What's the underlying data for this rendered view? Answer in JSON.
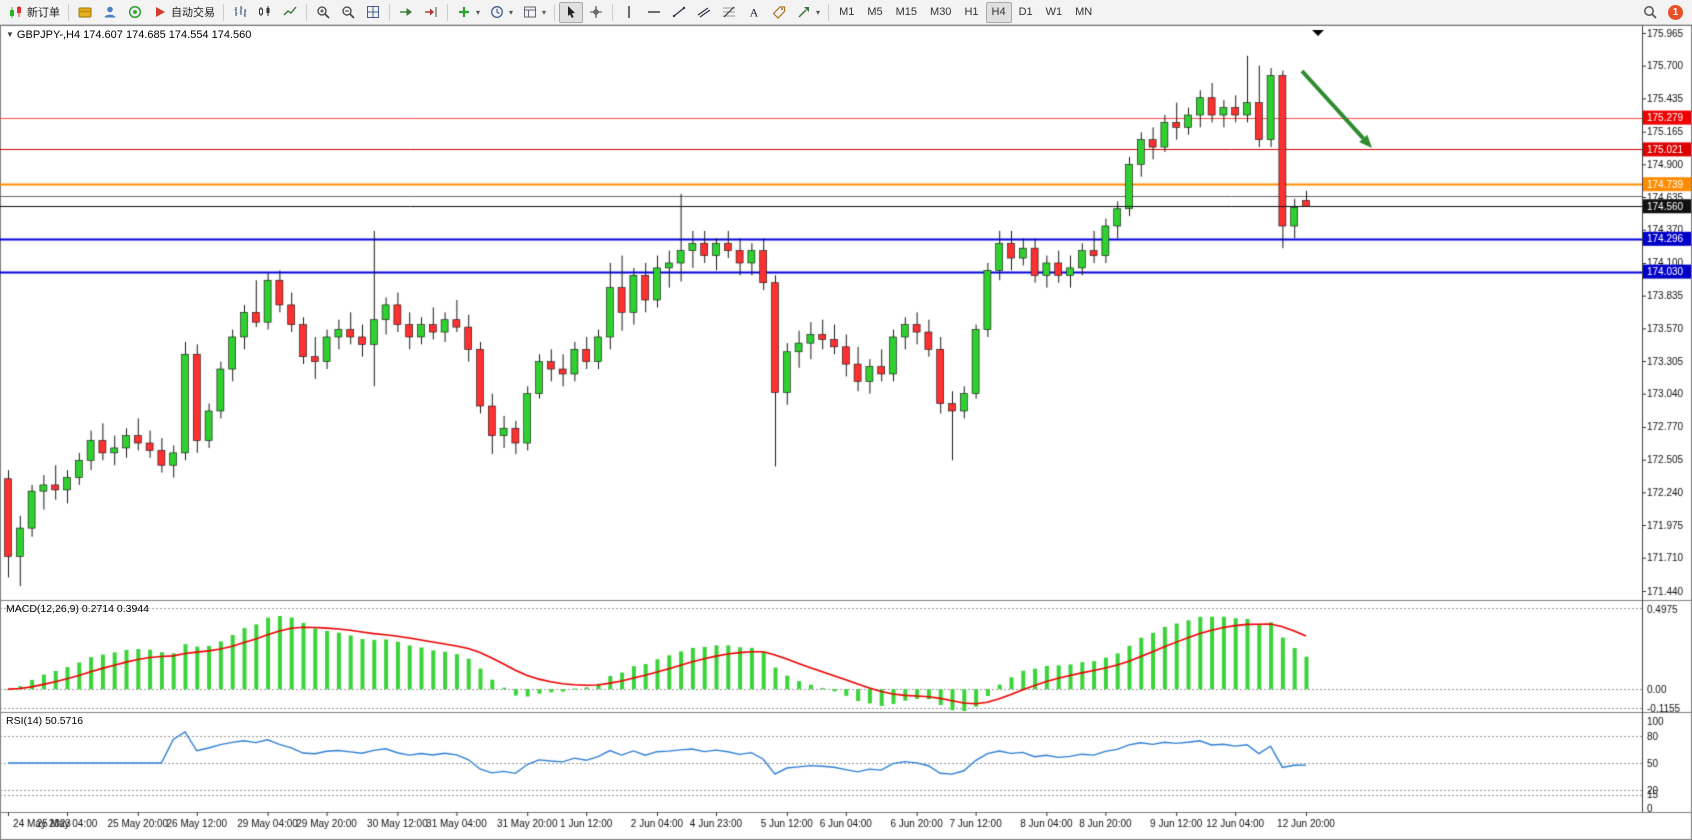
{
  "toolbar": {
    "items": [
      {
        "type": "button",
        "name": "new-order-button",
        "icon": "new-order-icon",
        "label": "新订单"
      },
      {
        "type": "sep"
      },
      {
        "type": "button",
        "name": "deposit-button",
        "icon": "wallet-icon"
      },
      {
        "type": "button",
        "name": "profile-button",
        "icon": "profile-icon"
      },
      {
        "type": "button",
        "name": "support-button",
        "icon": "headset-icon"
      },
      {
        "type": "button",
        "name": "auto-trading-button",
        "icon": "auto-trading-icon",
        "label": "自动交易"
      },
      {
        "type": "sep"
      },
      {
        "type": "button",
        "name": "bar-chart-button",
        "icon": "bar-chart-icon"
      },
      {
        "type": "button",
        "name": "candlestick-button",
        "icon": "candlestick-icon"
      },
      {
        "type": "button",
        "name": "line-chart-button",
        "icon": "line-chart-icon"
      },
      {
        "type": "sep"
      },
      {
        "type": "button",
        "name": "zoom-in-button",
        "icon": "zoom-in-icon"
      },
      {
        "type": "button",
        "name": "zoom-out-button",
        "icon": "zoom-out-icon"
      },
      {
        "type": "button",
        "name": "tile-windows-button",
        "icon": "tile-windows-icon"
      },
      {
        "type": "sep"
      },
      {
        "type": "button",
        "name": "auto-scroll-button",
        "icon": "auto-scroll-icon"
      },
      {
        "type": "button",
        "name": "chart-shift-button",
        "icon": "chart-shift-icon"
      },
      {
        "type": "sep"
      },
      {
        "type": "button",
        "name": "indicators-button",
        "icon": "indicators-icon",
        "dropdown": true
      },
      {
        "type": "button",
        "name": "periods-button",
        "icon": "clock-icon",
        "dropdown": true
      },
      {
        "type": "button",
        "name": "templates-button",
        "icon": "template-icon",
        "dropdown": true
      },
      {
        "type": "sep"
      },
      {
        "type": "button",
        "name": "cursor-button",
        "icon": "cursor-icon",
        "active": true
      },
      {
        "type": "button",
        "name": "crosshair-button",
        "icon": "crosshair-icon"
      },
      {
        "type": "sep"
      },
      {
        "type": "button",
        "name": "vertical-line-button",
        "icon": "vertical-line-icon"
      },
      {
        "type": "button",
        "name": "horizontal-line-button",
        "icon": "horizontal-line-icon"
      },
      {
        "type": "button",
        "name": "trendline-button",
        "icon": "trendline-icon"
      },
      {
        "type": "button",
        "name": "channel-button",
        "icon": "channel-icon"
      },
      {
        "type": "button",
        "name": "fibonacci-button",
        "icon": "fibonacci-icon"
      },
      {
        "type": "button",
        "name": "text-button",
        "icon": "text-icon"
      },
      {
        "type": "button",
        "name": "label-button",
        "icon": "label-icon"
      },
      {
        "type": "button",
        "name": "shapes-button",
        "icon": "shapes-icon",
        "dropdown": true
      },
      {
        "type": "sep"
      },
      {
        "type": "tf",
        "name": "timeframe-m1-button",
        "label": "M1"
      },
      {
        "type": "tf",
        "name": "timeframe-m5-button",
        "label": "M5"
      },
      {
        "type": "tf",
        "name": "timeframe-m15-button",
        "label": "M15"
      },
      {
        "type": "tf",
        "name": "timeframe-m30-button",
        "label": "M30"
      },
      {
        "type": "tf",
        "name": "timeframe-h1-button",
        "label": "H1"
      },
      {
        "type": "tf",
        "name": "timeframe-h4-button",
        "label": "H4",
        "active": true
      },
      {
        "type": "tf",
        "name": "timeframe-d1-button",
        "label": "D1"
      },
      {
        "type": "tf",
        "name": "timeframe-w1-button",
        "label": "W1"
      },
      {
        "type": "tf",
        "name": "timeframe-mn-button",
        "label": "MN"
      },
      {
        "type": "spacer"
      },
      {
        "type": "button",
        "name": "search-button",
        "icon": "search-icon"
      },
      {
        "type": "badge",
        "name": "notification-badge",
        "label": "1"
      }
    ]
  },
  "chart": {
    "title": "GBPJPY-,H4 174.607 174.685 174.554 174.560",
    "symbol": "GBPJPY-",
    "period": "H4",
    "ohlc": {
      "open": "174.607",
      "high": "174.685",
      "low": "174.554",
      "close": "174.560"
    }
  },
  "indicators": {
    "macd_label": "MACD(12,26,9) 0.2714 0.3944",
    "rsi_label": "RSI(14) 50.5716"
  },
  "chart_data": {
    "type": "candlestick",
    "symbol": "GBPJPY",
    "timeframe": "H4",
    "up_color": "#2fd02f",
    "down_color": "#ff3030",
    "wick_color": "#1a1a1a",
    "price_axis": {
      "min": 171.44,
      "max": 175.965,
      "ticks": [
        "175.965",
        "175.700",
        "175.435",
        "175.165",
        "174.900",
        "174.635",
        "174.370",
        "174.100",
        "173.835",
        "173.570",
        "173.305",
        "173.040",
        "172.770",
        "172.505",
        "172.240",
        "171.975",
        "171.710",
        "171.440"
      ]
    },
    "hlines": [
      {
        "price": 175.279,
        "color": "#ff4d4d",
        "width": 1,
        "badge": "175.279",
        "badge_color": "#f00000"
      },
      {
        "price": 175.021,
        "color": "#dd0000",
        "width": 1,
        "badge": "175.021",
        "badge_color": "#dd0000"
      },
      {
        "price": 174.739,
        "color": "#ff8c00",
        "width": 2,
        "badge": "174.739",
        "badge_color": "#ff8c00"
      },
      {
        "price": 174.64,
        "color": "#666666",
        "width": 1
      },
      {
        "price": 174.296,
        "color": "#0000e0",
        "width": 2,
        "badge": "174.296",
        "badge_color": "#0000c8"
      },
      {
        "price": 174.03,
        "color": "#0000e0",
        "width": 2,
        "badge": "174.030",
        "badge_color": "#0000c8"
      }
    ],
    "bid_line": {
      "price": 174.56,
      "color": "#101010",
      "width": 1,
      "badge": "174.560",
      "badge_color": "#101010"
    },
    "arrow": {
      "color": "#2e8b2e",
      "from": [
        1302,
        46
      ],
      "to": [
        1372,
        123
      ]
    },
    "macd": {
      "params": [
        12,
        26,
        9
      ],
      "value": 0.2714,
      "signal_value": 0.3944,
      "axis_labels": [
        "0.4975",
        "0.00",
        "-0.1155"
      ],
      "axis_values": [
        0.4975,
        0.0,
        -0.1155
      ],
      "hist_color": "#3ad43a",
      "signal_color": "#ee0000"
    },
    "rsi": {
      "period": 14,
      "value": 50.5716,
      "levels": [
        80,
        50,
        20,
        15
      ],
      "axis_labels": [
        "100",
        "80",
        "50",
        "20",
        "15",
        "0"
      ],
      "axis_values": [
        100,
        80,
        50,
        20,
        15,
        0
      ],
      "color": "#2f7fd6"
    },
    "time_labels": [
      {
        "i": 0,
        "t": "24 May 2023"
      },
      {
        "i": 5,
        "t": "25 May 04:00"
      },
      {
        "i": 11,
        "t": "25 May 20:00"
      },
      {
        "i": 16,
        "t": "26 May 12:00"
      },
      {
        "i": 22,
        "t": "29 May 04:00"
      },
      {
        "i": 27,
        "t": "29 May 20:00"
      },
      {
        "i": 33,
        "t": "30 May 12:00"
      },
      {
        "i": 38,
        "t": "31 May 04:00"
      },
      {
        "i": 44,
        "t": "31 May 20:00"
      },
      {
        "i": 49,
        "t": "1 Jun 12:00"
      },
      {
        "i": 55,
        "t": "2 Jun 04:00"
      },
      {
        "i": 60,
        "t": "4 Jun 23:00"
      },
      {
        "i": 66,
        "t": "5 Jun 12:00"
      },
      {
        "i": 71,
        "t": "6 Jun 04:00"
      },
      {
        "i": 77,
        "t": "6 Jun 20:00"
      },
      {
        "i": 82,
        "t": "7 Jun 12:00"
      },
      {
        "i": 88,
        "t": "8 Jun 04:00"
      },
      {
        "i": 93,
        "t": "8 Jun 20:00"
      },
      {
        "i": 99,
        "t": "9 Jun 12:00"
      },
      {
        "i": 104,
        "t": "12 Jun 04:00"
      },
      {
        "i": 110,
        "t": "12 Jun 20:00"
      }
    ],
    "candles": [
      [
        172.35,
        172.42,
        171.55,
        171.72
      ],
      [
        171.72,
        172.05,
        171.48,
        171.95
      ],
      [
        171.95,
        172.3,
        171.88,
        172.25
      ],
      [
        172.25,
        172.38,
        172.1,
        172.3
      ],
      [
        172.3,
        172.46,
        172.18,
        172.26
      ],
      [
        172.26,
        172.42,
        172.15,
        172.36
      ],
      [
        172.36,
        172.56,
        172.3,
        172.5
      ],
      [
        172.5,
        172.74,
        172.42,
        172.66
      ],
      [
        172.66,
        172.8,
        172.5,
        172.56
      ],
      [
        172.56,
        172.7,
        172.46,
        172.6
      ],
      [
        172.6,
        172.76,
        172.52,
        172.7
      ],
      [
        172.7,
        172.84,
        172.58,
        172.64
      ],
      [
        172.64,
        172.74,
        172.52,
        172.58
      ],
      [
        172.58,
        172.68,
        172.4,
        172.46
      ],
      [
        172.46,
        172.62,
        172.36,
        172.56
      ],
      [
        172.56,
        173.46,
        172.5,
        173.36
      ],
      [
        173.36,
        173.44,
        172.56,
        172.66
      ],
      [
        172.66,
        172.96,
        172.6,
        172.9
      ],
      [
        172.9,
        173.3,
        172.84,
        173.24
      ],
      [
        173.24,
        173.56,
        173.14,
        173.5
      ],
      [
        173.5,
        173.76,
        173.4,
        173.7
      ],
      [
        173.7,
        173.96,
        173.58,
        173.62
      ],
      [
        173.62,
        174.02,
        173.56,
        173.96
      ],
      [
        173.96,
        174.04,
        173.7,
        173.76
      ],
      [
        173.76,
        173.86,
        173.54,
        173.6
      ],
      [
        173.6,
        173.66,
        173.28,
        173.34
      ],
      [
        173.34,
        173.5,
        173.16,
        173.3
      ],
      [
        173.3,
        173.56,
        173.24,
        173.5
      ],
      [
        173.5,
        173.64,
        173.4,
        173.56
      ],
      [
        173.56,
        173.7,
        173.44,
        173.5
      ],
      [
        173.5,
        173.6,
        173.34,
        173.44
      ],
      [
        173.44,
        174.36,
        173.1,
        173.64
      ],
      [
        173.64,
        173.82,
        173.52,
        173.76
      ],
      [
        173.76,
        173.86,
        173.54,
        173.6
      ],
      [
        173.6,
        173.7,
        173.4,
        173.5
      ],
      [
        173.5,
        173.66,
        173.44,
        173.6
      ],
      [
        173.6,
        173.74,
        173.48,
        173.54
      ],
      [
        173.54,
        173.7,
        173.46,
        173.64
      ],
      [
        173.64,
        173.8,
        173.54,
        173.58
      ],
      [
        173.58,
        173.68,
        173.3,
        173.4
      ],
      [
        173.4,
        173.46,
        172.88,
        172.94
      ],
      [
        172.94,
        173.04,
        172.55,
        172.7
      ],
      [
        172.7,
        172.86,
        172.6,
        172.76
      ],
      [
        172.76,
        172.82,
        172.55,
        172.64
      ],
      [
        172.64,
        173.1,
        172.58,
        173.04
      ],
      [
        173.04,
        173.36,
        173.0,
        173.3
      ],
      [
        173.3,
        173.4,
        173.14,
        173.24
      ],
      [
        173.24,
        173.36,
        173.1,
        173.2
      ],
      [
        173.2,
        173.46,
        173.14,
        173.4
      ],
      [
        173.4,
        173.5,
        173.24,
        173.3
      ],
      [
        173.3,
        173.56,
        173.24,
        173.5
      ],
      [
        173.5,
        174.1,
        173.4,
        173.9
      ],
      [
        173.9,
        174.16,
        173.55,
        173.7
      ],
      [
        173.7,
        174.06,
        173.6,
        174.0
      ],
      [
        174.0,
        174.1,
        173.7,
        173.8
      ],
      [
        173.8,
        174.16,
        173.74,
        174.06
      ],
      [
        174.06,
        174.2,
        173.9,
        174.1
      ],
      [
        174.1,
        174.66,
        173.95,
        174.2
      ],
      [
        174.2,
        174.36,
        174.06,
        174.26
      ],
      [
        174.26,
        174.36,
        174.1,
        174.16
      ],
      [
        174.16,
        174.3,
        174.04,
        174.26
      ],
      [
        174.26,
        174.36,
        174.14,
        174.2
      ],
      [
        174.2,
        174.3,
        174.0,
        174.1
      ],
      [
        174.1,
        174.26,
        174.0,
        174.2
      ],
      [
        174.2,
        174.3,
        173.88,
        173.94
      ],
      [
        173.94,
        174.0,
        172.45,
        173.05
      ],
      [
        173.05,
        173.45,
        172.95,
        173.38
      ],
      [
        173.38,
        173.55,
        173.25,
        173.45
      ],
      [
        173.45,
        173.62,
        173.32,
        173.52
      ],
      [
        173.52,
        173.64,
        173.4,
        173.48
      ],
      [
        173.48,
        173.6,
        173.36,
        173.42
      ],
      [
        173.42,
        173.52,
        173.18,
        173.28
      ],
      [
        173.28,
        173.42,
        173.06,
        173.14
      ],
      [
        173.14,
        173.32,
        173.04,
        173.26
      ],
      [
        173.26,
        173.4,
        173.14,
        173.2
      ],
      [
        173.2,
        173.56,
        173.14,
        173.5
      ],
      [
        173.5,
        173.66,
        173.4,
        173.6
      ],
      [
        173.6,
        173.7,
        173.44,
        173.54
      ],
      [
        173.54,
        173.64,
        173.34,
        173.4
      ],
      [
        173.4,
        173.5,
        172.88,
        172.96
      ],
      [
        172.96,
        173.06,
        172.5,
        172.9
      ],
      [
        172.9,
        173.1,
        172.84,
        173.04
      ],
      [
        173.04,
        173.6,
        173.0,
        173.56
      ],
      [
        173.56,
        174.1,
        173.5,
        174.04
      ],
      [
        174.04,
        174.36,
        173.96,
        174.26
      ],
      [
        174.26,
        174.36,
        174.04,
        174.14
      ],
      [
        174.14,
        174.3,
        174.08,
        174.22
      ],
      [
        174.22,
        174.3,
        173.94,
        174.0
      ],
      [
        174.0,
        174.16,
        173.9,
        174.1
      ],
      [
        174.1,
        174.2,
        173.94,
        174.0
      ],
      [
        174.0,
        174.16,
        173.9,
        174.06
      ],
      [
        174.06,
        174.26,
        174.0,
        174.2
      ],
      [
        174.2,
        174.36,
        174.1,
        174.16
      ],
      [
        174.16,
        174.46,
        174.1,
        174.4
      ],
      [
        174.4,
        174.6,
        174.3,
        174.54
      ],
      [
        174.54,
        174.96,
        174.48,
        174.9
      ],
      [
        174.9,
        175.16,
        174.8,
        175.1
      ],
      [
        175.1,
        175.2,
        174.94,
        175.04
      ],
      [
        175.04,
        175.3,
        175.0,
        175.24
      ],
      [
        175.24,
        175.4,
        175.1,
        175.2
      ],
      [
        175.2,
        175.36,
        175.14,
        175.3
      ],
      [
        175.3,
        175.5,
        175.2,
        175.44
      ],
      [
        175.44,
        175.56,
        175.24,
        175.3
      ],
      [
        175.3,
        175.42,
        175.2,
        175.36
      ],
      [
        175.36,
        175.46,
        175.24,
        175.3
      ],
      [
        175.3,
        175.78,
        175.24,
        175.4
      ],
      [
        175.4,
        175.7,
        175.04,
        175.1
      ],
      [
        175.1,
        175.68,
        175.04,
        175.62
      ],
      [
        175.62,
        175.66,
        174.22,
        174.4
      ],
      [
        174.4,
        174.62,
        174.3,
        174.55
      ],
      [
        174.607,
        174.685,
        174.554,
        174.56
      ]
    ]
  }
}
